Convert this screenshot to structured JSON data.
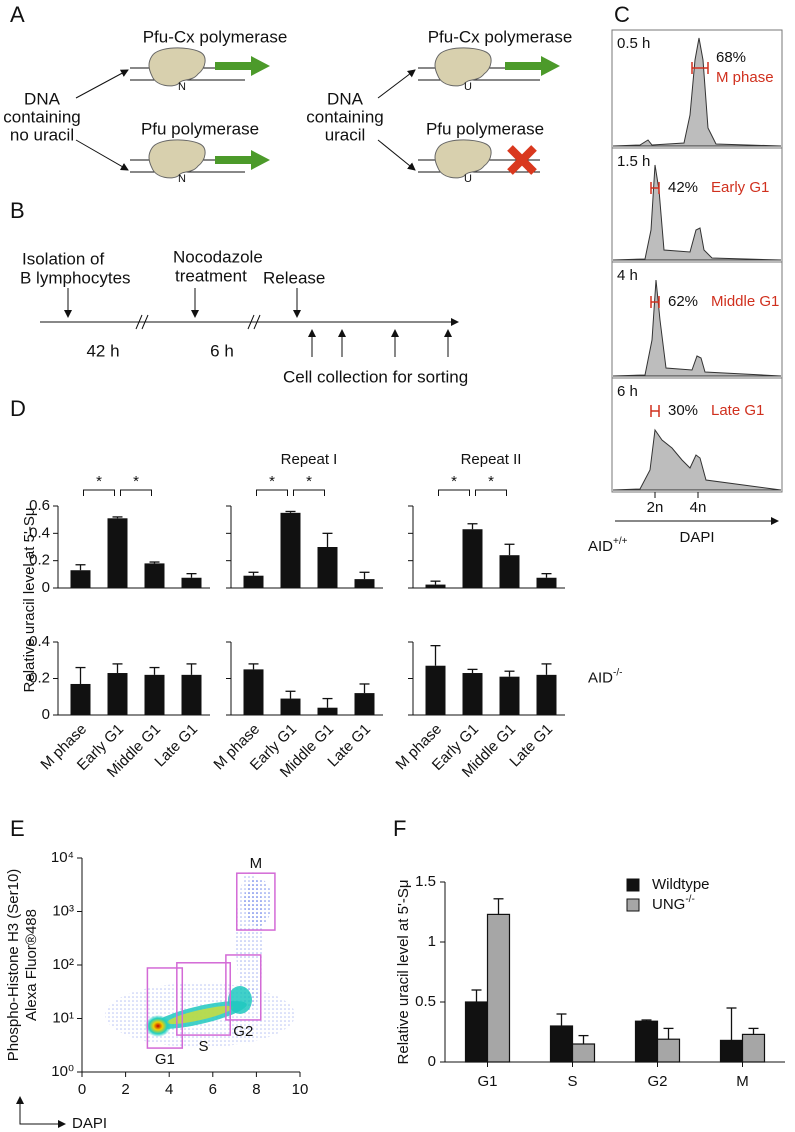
{
  "panel_a": {
    "label": "A",
    "left": {
      "source": [
        "DNA",
        "containing",
        "no uracil"
      ],
      "top": {
        "enzyme": "Pfu-Cx polymerase",
        "base": "N"
      },
      "bottom": {
        "enzyme": "Pfu polymerase",
        "base": "N"
      }
    },
    "right": {
      "source": [
        "DNA",
        "containing",
        "uracil"
      ],
      "top": {
        "enzyme": "Pfu-Cx polymerase",
        "base": "U"
      },
      "bottom": {
        "enzyme": "Pfu polymerase",
        "base": "U"
      }
    }
  },
  "panel_b": {
    "label": "B",
    "events": [
      {
        "text": [
          "Isolation of",
          "B lymphocytes"
        ]
      },
      {
        "text": [
          "Nocodazole",
          "treatment"
        ]
      },
      {
        "text": [
          "Release"
        ]
      }
    ],
    "intervals": [
      "42 h",
      "6 h"
    ],
    "collection": "Cell collection for sorting"
  },
  "panel_c": {
    "label": "C",
    "timepoints": [
      {
        "time": "0.5 h",
        "percent": "68%",
        "phase": "M phase"
      },
      {
        "time": "1.5 h",
        "percent": "42%",
        "phase": "Early G1"
      },
      {
        "time": "4 h",
        "percent": "62%",
        "phase": "Middle G1"
      },
      {
        "time": "6 h",
        "percent": "30%",
        "phase": "Late G1"
      }
    ],
    "axis": {
      "ticks": [
        "2n",
        "4n"
      ],
      "label": "DAPI"
    }
  },
  "chart_data": [
    {
      "type": "bar-grid",
      "panel": "D",
      "ylabel": "Relative uracil level at 5'-Sμ",
      "categories": [
        "M phase",
        "Early G1",
        "Middle G1",
        "Late G1"
      ],
      "color": "#111111",
      "rows": [
        {
          "label": "AID",
          "label_sup": "+/+",
          "ylim": [
            0,
            0.6
          ],
          "yticks": [
            0,
            0.2,
            0.4,
            0.6
          ],
          "charts": [
            {
              "values": [
                0.13,
                0.51,
                0.18,
                0.075
              ],
              "errors": [
                0.04,
                0.01,
                0.01,
                0.03
              ],
              "significance": [
                {
                  "from": 0,
                  "to": 1,
                  "label": "*"
                },
                {
                  "from": 1,
                  "to": 2,
                  "label": "*"
                }
              ]
            },
            {
              "title": "Repeat I",
              "values": [
                0.09,
                0.55,
                0.3,
                0.065
              ],
              "errors": [
                0.025,
                0.01,
                0.1,
                0.05
              ],
              "significance": [
                {
                  "from": 0,
                  "to": 1,
                  "label": "*"
                },
                {
                  "from": 1,
                  "to": 2,
                  "label": "*"
                }
              ]
            },
            {
              "title": "Repeat II",
              "values": [
                0.025,
                0.43,
                0.24,
                0.075
              ],
              "errors": [
                0.025,
                0.04,
                0.08,
                0.03
              ],
              "significance": [
                {
                  "from": 0,
                  "to": 1,
                  "label": "*"
                },
                {
                  "from": 1,
                  "to": 2,
                  "label": "*"
                }
              ]
            }
          ]
        },
        {
          "label": "AID",
          "label_sup": "-/-",
          "ylim": [
            0,
            0.4
          ],
          "yticks": [
            0,
            0.2,
            0.4
          ],
          "charts": [
            {
              "values": [
                0.17,
                0.23,
                0.22,
                0.22
              ],
              "errors": [
                0.09,
                0.05,
                0.04,
                0.06
              ]
            },
            {
              "values": [
                0.25,
                0.09,
                0.04,
                0.12
              ],
              "errors": [
                0.03,
                0.04,
                0.05,
                0.05
              ]
            },
            {
              "values": [
                0.27,
                0.23,
                0.21,
                0.22
              ],
              "errors": [
                0.11,
                0.02,
                0.03,
                0.06
              ]
            }
          ]
        }
      ]
    },
    {
      "type": "scatter",
      "panel": "E",
      "ylabel": [
        "Phospho-Histone H3 (Ser10)",
        "Alexa Fluor®488"
      ],
      "xlabel": "DAPI",
      "xlim": [
        0,
        10
      ],
      "xticks": [
        0,
        2,
        4,
        6,
        8,
        10
      ],
      "ylim": [
        1,
        10000
      ],
      "ylog": true,
      "yticks": [
        {
          "value": 1,
          "label": "10⁰"
        },
        {
          "value": 10,
          "label": "10¹"
        },
        {
          "value": 100,
          "label": "10²"
        },
        {
          "value": 1000,
          "label": "10³"
        },
        {
          "value": 10000,
          "label": "10⁴"
        }
      ],
      "gate_color": "#d36ad6",
      "gate_label_color": "#d0301e",
      "gates": [
        {
          "label": "M",
          "x": [
            7.1,
            8.85
          ],
          "y": [
            450,
            5200
          ]
        },
        {
          "label": "G1",
          "x": [
            3.0,
            4.6
          ],
          "y": [
            2.8,
            88
          ]
        },
        {
          "label": "S",
          "x": [
            4.35,
            6.8
          ],
          "y": [
            4.9,
            110
          ]
        },
        {
          "label": "G2",
          "x": [
            6.6,
            8.2
          ],
          "y": [
            9.4,
            154
          ]
        }
      ]
    },
    {
      "type": "grouped-bar",
      "panel": "F",
      "ylabel": "Relative uracil level at 5'-Sμ",
      "categories": [
        "G1",
        "S",
        "G2",
        "M"
      ],
      "ylim": [
        0,
        1.5
      ],
      "yticks": [
        0,
        0.5,
        1,
        1.5
      ],
      "series": [
        {
          "name": "Wildtype",
          "color": "#111111",
          "values": [
            0.5,
            0.3,
            0.34,
            0.18
          ],
          "errors": [
            0.1,
            0.1,
            0.01,
            0.27
          ]
        },
        {
          "name": "UNG",
          "name_sup": "-/-",
          "color": "#a6a6a6",
          "values": [
            1.23,
            0.15,
            0.19,
            0.23
          ],
          "errors": [
            0.13,
            0.07,
            0.09,
            0.05
          ]
        }
      ]
    }
  ]
}
